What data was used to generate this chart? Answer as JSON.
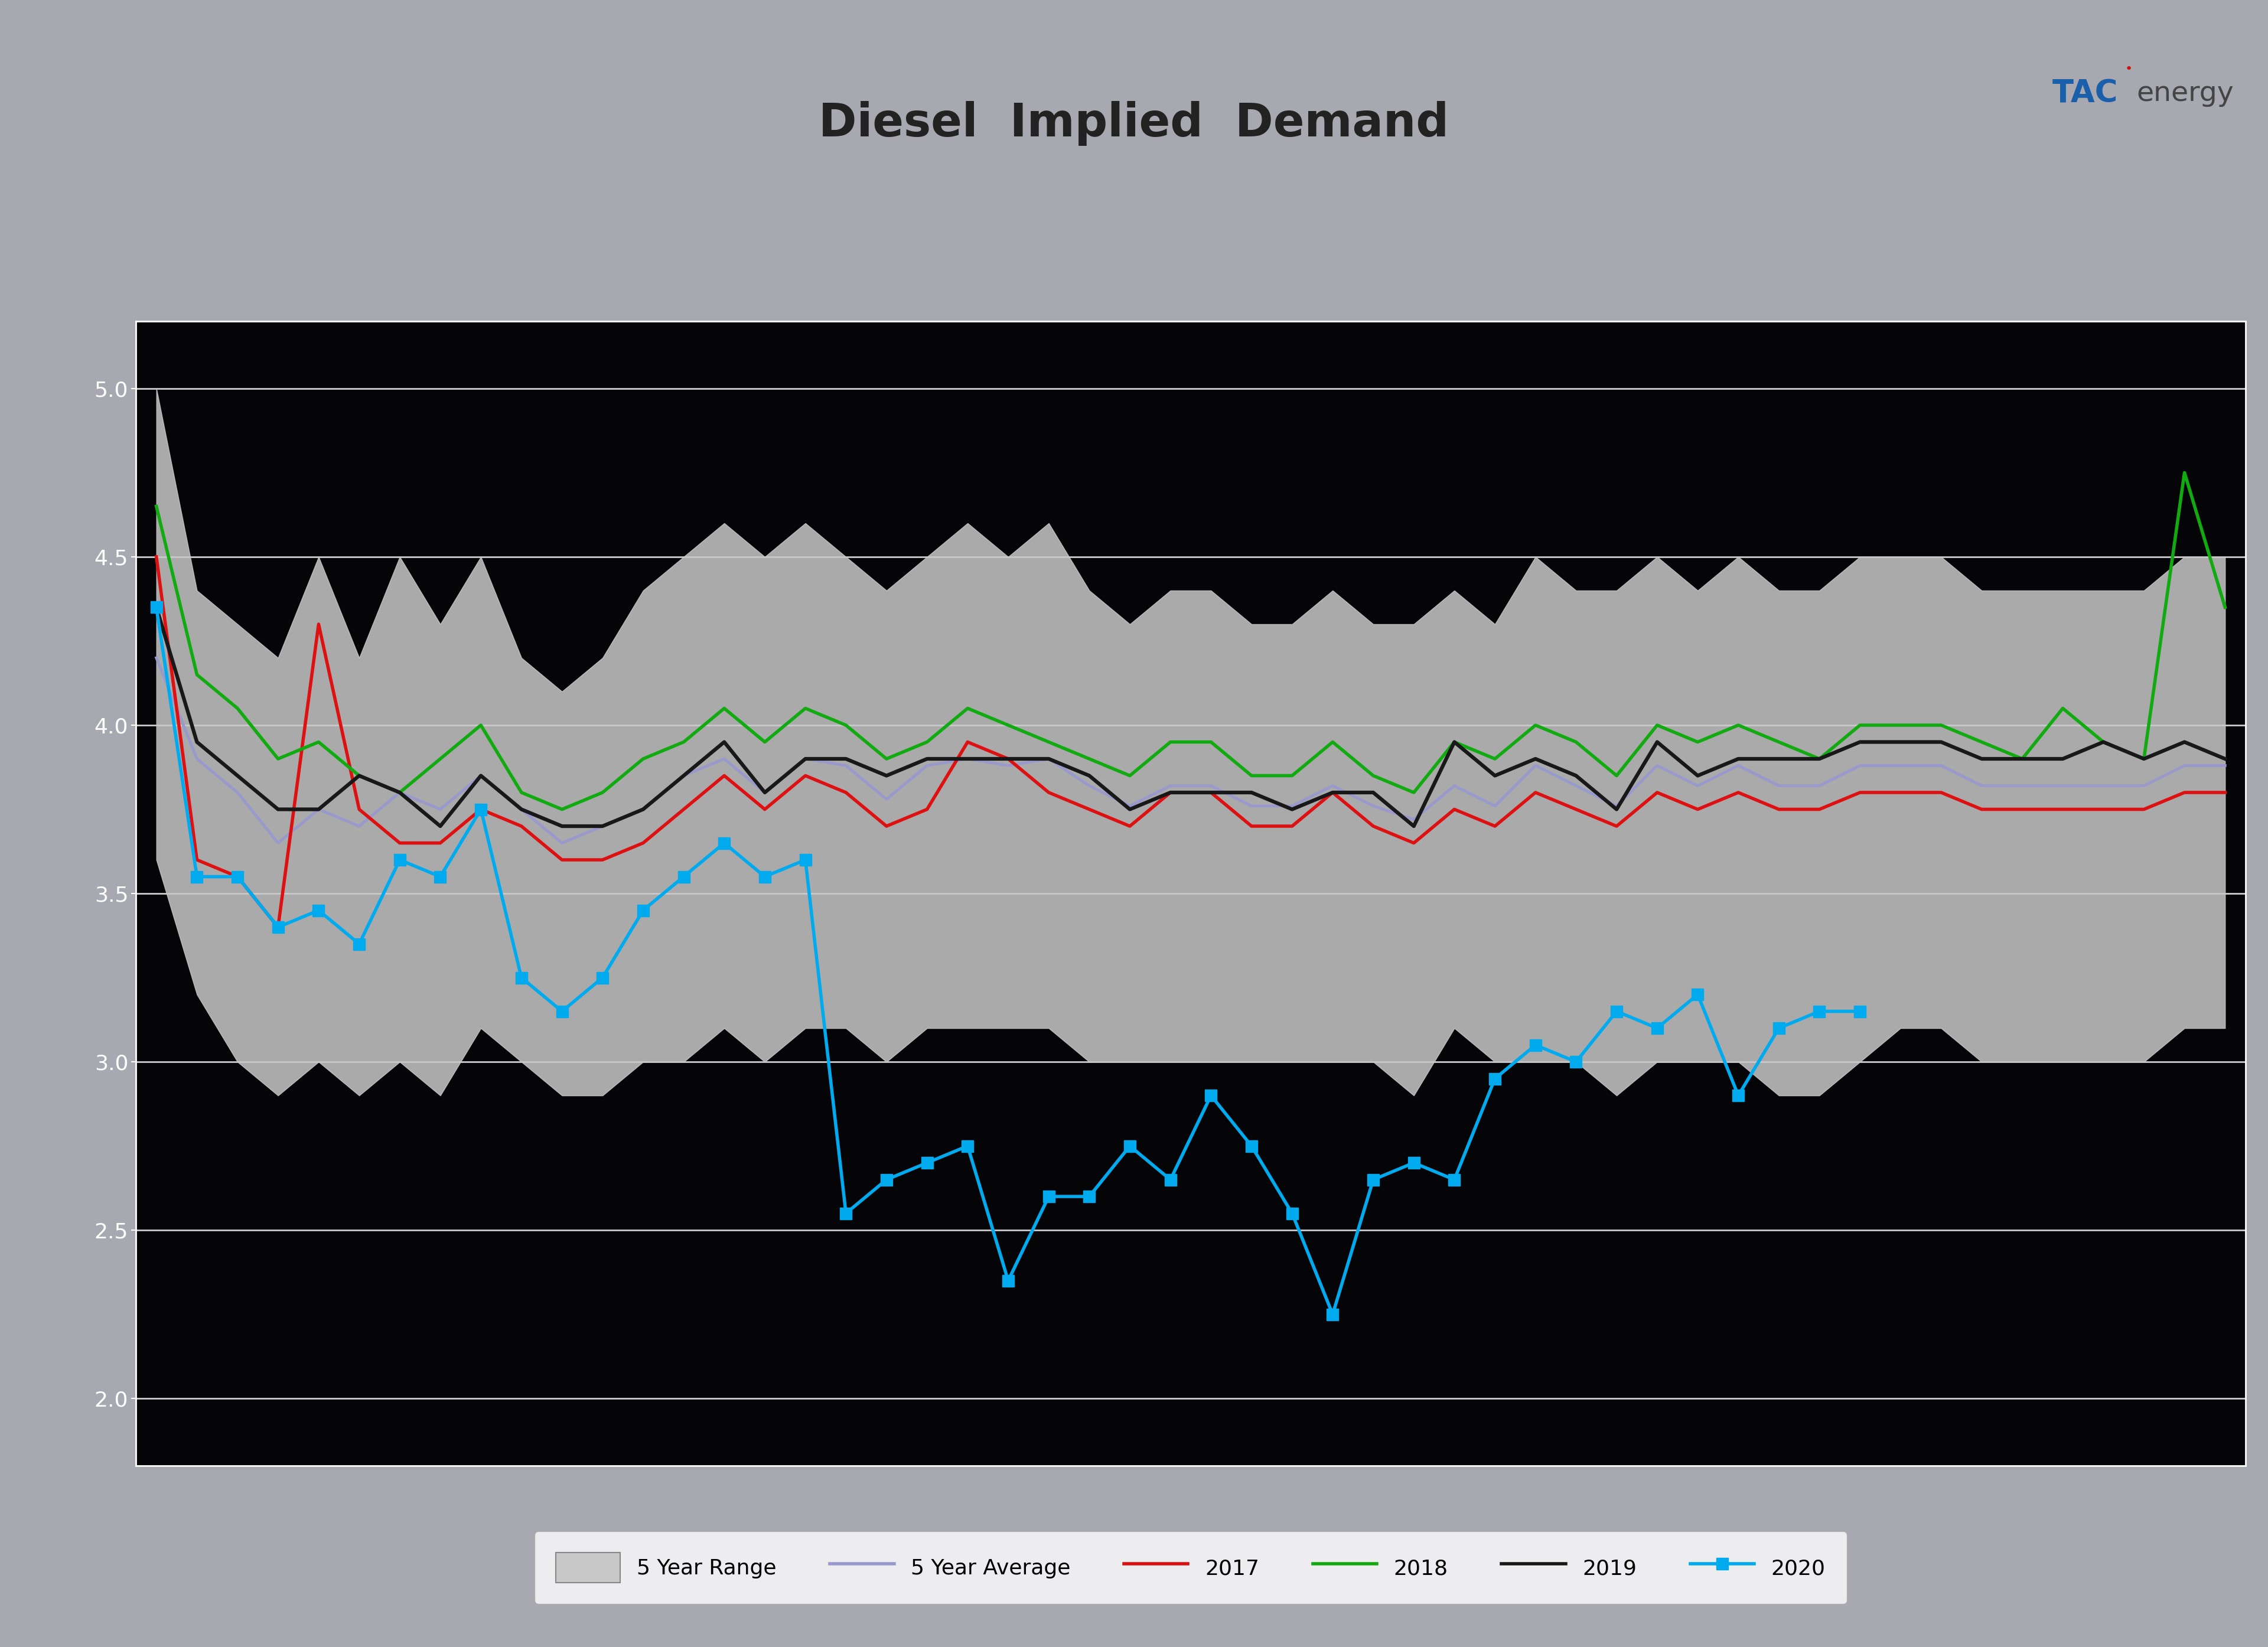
{
  "title": "Diesel  Implied  Demand",
  "title_fontsize": 56,
  "title_color": "#222222",
  "header_bg_color": "#a8a8b0",
  "blue_banner_color": "#1a5faa",
  "chart_bg_color": "#050508",
  "grid_color": "#ffffff",
  "five_yr_max": [
    5.0,
    4.4,
    4.3,
    4.2,
    4.5,
    4.2,
    4.5,
    4.3,
    4.5,
    4.2,
    4.1,
    4.2,
    4.4,
    4.5,
    4.6,
    4.5,
    4.6,
    4.5,
    4.4,
    4.5,
    4.6,
    4.5,
    4.6,
    4.4,
    4.3,
    4.4,
    4.4,
    4.3,
    4.3,
    4.4,
    4.3,
    4.3,
    4.4,
    4.3,
    4.5,
    4.4,
    4.4,
    4.5,
    4.4,
    4.5,
    4.4,
    4.4,
    4.5,
    4.5,
    4.5,
    4.4,
    4.4,
    4.4,
    4.4,
    4.4,
    4.5,
    4.5
  ],
  "five_yr_min": [
    3.6,
    3.2,
    3.0,
    2.9,
    3.0,
    2.9,
    3.0,
    2.9,
    3.1,
    3.0,
    2.9,
    2.9,
    3.0,
    3.0,
    3.1,
    3.0,
    3.1,
    3.1,
    3.0,
    3.1,
    3.1,
    3.1,
    3.1,
    3.0,
    3.0,
    3.0,
    3.0,
    3.0,
    3.0,
    3.0,
    3.0,
    2.9,
    3.1,
    3.0,
    3.0,
    3.0,
    2.9,
    3.0,
    3.0,
    3.0,
    2.9,
    2.9,
    3.0,
    3.1,
    3.1,
    3.0,
    3.0,
    3.0,
    3.0,
    3.0,
    3.1,
    3.1
  ],
  "five_yr_avg": [
    4.2,
    3.9,
    3.8,
    3.65,
    3.75,
    3.7,
    3.8,
    3.75,
    3.85,
    3.75,
    3.65,
    3.7,
    3.75,
    3.85,
    3.9,
    3.8,
    3.9,
    3.88,
    3.78,
    3.88,
    3.9,
    3.88,
    3.9,
    3.82,
    3.76,
    3.82,
    3.82,
    3.76,
    3.76,
    3.82,
    3.76,
    3.72,
    3.82,
    3.76,
    3.88,
    3.82,
    3.76,
    3.88,
    3.82,
    3.88,
    3.82,
    3.82,
    3.88,
    3.88,
    3.88,
    3.82,
    3.82,
    3.82,
    3.82,
    3.82,
    3.88,
    3.88
  ],
  "y2017": [
    4.5,
    3.6,
    3.55,
    3.4,
    4.3,
    3.75,
    3.65,
    3.65,
    3.75,
    3.7,
    3.6,
    3.6,
    3.65,
    3.75,
    3.85,
    3.75,
    3.85,
    3.8,
    3.7,
    3.75,
    3.95,
    3.9,
    3.8,
    3.75,
    3.7,
    3.8,
    3.8,
    3.7,
    3.7,
    3.8,
    3.7,
    3.65,
    3.75,
    3.7,
    3.8,
    3.75,
    3.7,
    3.8,
    3.75,
    3.8,
    3.75,
    3.75,
    3.8,
    3.8,
    3.8,
    3.75,
    3.75,
    3.75,
    3.75,
    3.75,
    3.8,
    3.8
  ],
  "y2018": [
    4.65,
    4.15,
    4.05,
    3.9,
    3.95,
    3.85,
    3.8,
    3.9,
    4.0,
    3.8,
    3.75,
    3.8,
    3.9,
    3.95,
    4.05,
    3.95,
    4.05,
    4.0,
    3.9,
    3.95,
    4.05,
    4.0,
    3.95,
    3.9,
    3.85,
    3.95,
    3.95,
    3.85,
    3.85,
    3.95,
    3.85,
    3.8,
    3.95,
    3.9,
    4.0,
    3.95,
    3.85,
    4.0,
    3.95,
    4.0,
    3.95,
    3.9,
    4.0,
    4.0,
    4.0,
    3.95,
    3.9,
    4.05,
    3.95,
    3.9,
    4.75,
    4.35
  ],
  "y2019": [
    4.35,
    3.95,
    3.85,
    3.75,
    3.75,
    3.85,
    3.8,
    3.7,
    3.85,
    3.75,
    3.7,
    3.7,
    3.75,
    3.85,
    3.95,
    3.8,
    3.9,
    3.9,
    3.85,
    3.9,
    3.9,
    3.9,
    3.9,
    3.85,
    3.75,
    3.8,
    3.8,
    3.8,
    3.75,
    3.8,
    3.8,
    3.7,
    3.95,
    3.85,
    3.9,
    3.85,
    3.75,
    3.95,
    3.85,
    3.9,
    3.9,
    3.9,
    3.95,
    3.95,
    3.95,
    3.9,
    3.9,
    3.9,
    3.95,
    3.9,
    3.95,
    3.9
  ],
  "y2020": [
    4.35,
    3.55,
    3.55,
    3.4,
    3.45,
    3.35,
    3.6,
    3.55,
    3.75,
    3.25,
    3.15,
    3.25,
    3.45,
    3.55,
    3.65,
    3.55,
    3.6,
    2.55,
    2.65,
    2.7,
    2.75,
    2.35,
    2.6,
    2.6,
    2.75,
    2.65,
    2.9,
    2.75,
    2.55,
    2.25,
    2.65,
    2.7,
    2.65,
    2.95,
    3.05,
    3.0,
    3.15,
    3.1,
    3.2,
    2.9,
    3.1,
    3.15,
    3.15,
    null,
    null,
    null,
    null,
    null,
    null,
    null,
    null,
    null
  ],
  "ylim": [
    1.8,
    5.2
  ],
  "yticks": [
    2.0,
    2.5,
    3.0,
    3.5,
    4.0,
    4.5,
    5.0
  ],
  "five_yr_range_color": "#c8c8c8",
  "five_yr_range_alpha": 0.85,
  "five_yr_avg_color": "#9999cc",
  "y2017_color": "#dd1111",
  "y2018_color": "#11aa11",
  "y2019_color": "#181818",
  "y2020_color": "#00aaee",
  "line_width": 3.0,
  "marker_2020": "s",
  "marker_size_2020": 14
}
